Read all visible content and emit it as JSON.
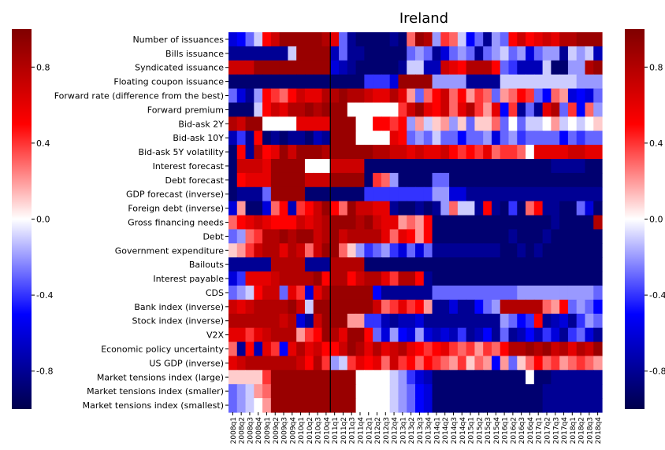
{
  "chart_data": {
    "type": "heatmap",
    "title": "Ireland",
    "rows": [
      "Number of issuances",
      "Bills issuance",
      "Syndicated issuance",
      "Floating coupon issuance",
      "Forward rate (difference from the best)",
      "Forward premium",
      "Bid-ask 2Y",
      "Bid-ask 10Y",
      "Bid-ask 5Y volatility",
      "Interest forecast",
      "Debt forecast",
      "GDP forecast (inverse)",
      "Foreign debt (inverse)",
      "Gross financing needs",
      "Debt",
      "Government expenditure",
      "Bailouts",
      "Interest payable",
      "CDS",
      "Bank index (inverse)",
      "Stock index (inverse)",
      "V2X",
      "Economic policy uncertainty",
      "US GDP (inverse)",
      "Market tensions index (large)",
      "Market tensions index (smaller)",
      "Market tensions index (smallest)"
    ],
    "columns": [
      "2008q1",
      "2008q2",
      "2008q3",
      "2008q4",
      "2009q1",
      "2009q2",
      "2009q3",
      "2009q4",
      "2010q1",
      "2010q2",
      "2010q3",
      "2010q4",
      "2011q1",
      "2011q2",
      "2011q3",
      "2011q4",
      "2012q1",
      "2012q2",
      "2012q3",
      "2012q4",
      "2013q1",
      "2013q2",
      "2013q3",
      "2013q4",
      "2014q1",
      "2014q2",
      "2014q3",
      "2014q4",
      "2015q1",
      "2015q2",
      "2015q3",
      "2015q4",
      "2016q1",
      "2016q2",
      "2016q3",
      "2016q4",
      "2017q1",
      "2017q2",
      "2017q3",
      "2017q4",
      "2018q1",
      "2018q2",
      "2018q3",
      "2018q4"
    ],
    "tick_labels_shown": [
      "2008q1",
      "2008q2",
      "2008q3",
      "2008q4",
      "2009q1",
      "2009q2",
      "2009q3",
      "2009q4",
      "2010q1",
      "2010q2",
      "2010q3",
      "2010q4",
      "2011q1",
      "2011q2",
      "2011q3",
      "2011q4",
      "2012q1",
      "2012q2",
      "2012q3",
      "2012q4",
      "2013q1",
      "2013q2",
      "2013q3",
      "2013q4",
      "2014q1",
      "2014q2",
      "2014q3",
      "2014q4",
      "2015q1",
      "2015q2",
      "2015q3",
      "2015q4",
      "2016q1",
      "2016q2",
      "2016q3",
      "2016q4",
      "2017q1",
      "2017q2",
      "2017q3",
      "2017q4",
      "2018q1",
      "2018q2",
      "2018q3",
      "2018q4"
    ],
    "value_range": [
      -1,
      1
    ],
    "colormap": [
      "#00004c",
      "#0000ff",
      "#ffffff",
      "#ff0000",
      "#7f0000"
    ],
    "colorbar_ticks": [
      0.8,
      0.4,
      0.0,
      -0.4,
      -0.8
    ],
    "colorbar_tick_labels": [
      "0.8",
      "0.4",
      "0.0",
      "-0.4",
      "-0.8"
    ],
    "vertical_marker_at": "2011q1",
    "values": [
      [
        -0.6,
        -0.5,
        -0.3,
        -0.1,
        0.5,
        0.7,
        0.9,
        0.9,
        0.9,
        0.9,
        0.9,
        0.8,
        0.6,
        -0.3,
        -0.8,
        -0.9,
        -0.9,
        -0.9,
        -0.9,
        -0.8,
        -0.9,
        0.3,
        0.9,
        0.8,
        -0.2,
        0.4,
        0.3,
        -0.1,
        -0.5,
        -0.3,
        -0.8,
        -0.2,
        -0.3,
        0.5,
        0.7,
        0.5,
        0.6,
        0.7,
        0.6,
        0.8,
        0.8,
        0.9,
        0.9,
        0.9
      ],
      [
        -0.8,
        -0.8,
        -0.8,
        -0.8,
        -0.8,
        -0.8,
        -0.8,
        -0.1,
        0.9,
        0.9,
        0.9,
        0.9,
        -0.7,
        -0.3,
        -0.8,
        -0.8,
        -0.9,
        -0.9,
        -0.9,
        -0.9,
        -0.9,
        -0.3,
        -0.2,
        -0.3,
        -0.8,
        -0.6,
        -0.3,
        -0.2,
        -0.3,
        -0.8,
        -0.3,
        -0.2,
        -0.1,
        -0.3,
        -0.2,
        -0.6,
        -0.3,
        -0.2,
        -0.2,
        -0.8,
        -0.1,
        -0.2,
        -0.1,
        -0.7
      ],
      [
        0.7,
        0.7,
        0.7,
        0.9,
        0.9,
        0.9,
        0.9,
        0.9,
        0.9,
        0.9,
        0.9,
        0.9,
        -0.6,
        -0.7,
        -0.8,
        -0.9,
        -0.9,
        -0.9,
        -0.9,
        -0.9,
        -0.8,
        -0.1,
        -0.1,
        -0.7,
        -0.7,
        0.7,
        0.6,
        0.5,
        0.8,
        0.8,
        0.8,
        0.5,
        -0.3,
        -0.4,
        -0.7,
        -0.7,
        -0.7,
        -0.1,
        -0.9,
        -0.9,
        -0.2,
        -0.2,
        0.8,
        0.9
      ],
      [
        -0.9,
        -0.9,
        -0.9,
        -0.9,
        -0.9,
        -0.9,
        -0.9,
        -0.9,
        -0.9,
        -0.9,
        -0.9,
        -0.9,
        -0.9,
        -0.9,
        -0.9,
        -0.9,
        -0.4,
        -0.4,
        -0.4,
        -0.6,
        0.9,
        0.9,
        0.9,
        0.9,
        -0.2,
        -0.2,
        -0.2,
        -0.2,
        -0.8,
        -0.8,
        -0.8,
        -0.8,
        -0.1,
        -0.1,
        -0.1,
        -0.1,
        -0.1,
        -0.1,
        -0.1,
        -0.1,
        -0.1,
        -0.2,
        -0.2,
        -0.2
      ],
      [
        -0.3,
        -0.6,
        -0.8,
        -0.2,
        0.5,
        0.4,
        0.3,
        0.5,
        0.7,
        0.6,
        0.6,
        0.8,
        0.8,
        0.9,
        0.8,
        0.8,
        0.7,
        0.6,
        0.6,
        0.8,
        0.6,
        0.2,
        -0.3,
        0.3,
        0.5,
        0.7,
        0.3,
        0.5,
        0.2,
        0.4,
        0.3,
        -0.3,
        0.2,
        0.3,
        0.5,
        0.4,
        -0.3,
        -0.5,
        0.3,
        0.2,
        -0.6,
        -0.5,
        -0.6,
        -0.3
      ],
      [
        -0.9,
        -0.9,
        -0.9,
        -0.1,
        0.5,
        0.7,
        0.6,
        0.8,
        0.8,
        0.9,
        0.8,
        0.9,
        0.9,
        0.9,
        0.0,
        0.0,
        0.0,
        0.0,
        0.0,
        0.0,
        0.4,
        0.7,
        0.9,
        0.6,
        0.5,
        0.7,
        0.3,
        0.6,
        0.8,
        0.4,
        0.2,
        0.6,
        -0.5,
        0.4,
        -0.8,
        -0.3,
        -0.8,
        0.6,
        0.8,
        -0.3,
        0.4,
        -0.5,
        0.3,
        -0.2
      ],
      [
        0.8,
        0.7,
        0.9,
        0.9,
        0.0,
        0.0,
        0.0,
        0.0,
        0.6,
        0.6,
        0.6,
        0.6,
        0.9,
        0.9,
        0.9,
        0.0,
        0.0,
        0.5,
        0.5,
        0.4,
        0.5,
        -0.2,
        0.2,
        -0.1,
        0.1,
        0.2,
        -0.2,
        0.1,
        -0.3,
        0.1,
        0.1,
        0.3,
        -0.3,
        0.0,
        -0.3,
        -0.1,
        -0.1,
        0.0,
        0.2,
        -0.1,
        0.0,
        -0.1,
        0.0,
        0.1
      ],
      [
        -0.7,
        -0.4,
        -0.8,
        0.5,
        -0.9,
        -0.8,
        -0.9,
        -0.8,
        -0.8,
        -0.9,
        -0.7,
        -0.8,
        0.9,
        0.9,
        0.9,
        0.0,
        0.0,
        0.0,
        0.0,
        0.6,
        0.5,
        -0.3,
        -0.2,
        -0.3,
        -0.1,
        -0.3,
        -0.3,
        -0.5,
        -0.3,
        -0.3,
        -0.2,
        -0.6,
        -0.3,
        -0.2,
        -0.4,
        -0.3,
        -0.3,
        -0.3,
        -0.3,
        -0.5,
        -0.3,
        -0.4,
        -0.3,
        -0.3
      ],
      [
        -0.9,
        0.5,
        -0.8,
        0.8,
        0.5,
        0.6,
        0.9,
        0.7,
        0.9,
        0.9,
        0.9,
        0.8,
        0.9,
        0.9,
        0.9,
        0.9,
        0.9,
        0.8,
        0.8,
        0.7,
        0.7,
        0.6,
        0.7,
        0.6,
        0.6,
        0.7,
        0.5,
        0.4,
        0.5,
        0.4,
        0.6,
        0.3,
        0.4,
        0.4,
        0.3,
        0.0,
        0.6,
        0.6,
        0.6,
        0.6,
        0.7,
        0.7,
        0.6,
        0.6
      ],
      [
        -0.9,
        0.7,
        0.7,
        0.7,
        0.6,
        0.9,
        0.9,
        0.9,
        0.9,
        0.0,
        0.0,
        0.0,
        0.7,
        0.7,
        0.7,
        0.7,
        -0.9,
        -0.9,
        -0.9,
        -0.9,
        -0.9,
        -0.9,
        -0.9,
        -0.9,
        -0.9,
        -0.9,
        -0.9,
        -0.9,
        -0.9,
        -0.9,
        -0.9,
        -0.9,
        -0.9,
        -0.9,
        -0.9,
        -0.9,
        -0.9,
        -0.9,
        -0.8,
        -0.8,
        -0.8,
        -0.8,
        -0.9,
        -0.9
      ],
      [
        -0.9,
        0.5,
        0.6,
        0.6,
        0.6,
        0.9,
        0.9,
        0.9,
        0.9,
        0.7,
        0.7,
        0.7,
        0.9,
        0.9,
        0.9,
        0.9,
        -0.9,
        0.4,
        0.3,
        -0.2,
        -0.9,
        -0.9,
        -0.9,
        -0.9,
        -0.3,
        -0.3,
        -0.9,
        -0.9,
        -0.9,
        -0.9,
        -0.9,
        -0.9,
        -0.9,
        -0.9,
        -0.9,
        -0.9,
        -0.9,
        -0.9,
        -0.9,
        -0.9,
        -0.9,
        -0.9,
        -0.9,
        -0.9
      ],
      [
        -0.9,
        -0.8,
        -0.8,
        -0.8,
        -0.3,
        0.9,
        0.9,
        0.9,
        0.9,
        -0.9,
        -0.9,
        -0.9,
        -0.9,
        -0.9,
        -0.9,
        -0.9,
        -0.4,
        -0.4,
        -0.4,
        -0.4,
        -0.4,
        -0.4,
        -0.4,
        -0.4,
        -0.2,
        -0.2,
        -0.6,
        -0.6,
        -0.8,
        -0.8,
        -0.8,
        -0.8,
        -0.8,
        -0.8,
        -0.8,
        -0.8,
        -0.8,
        -0.8,
        -0.8,
        -0.8,
        -0.8,
        -0.8,
        -0.8,
        -0.8
      ],
      [
        -0.6,
        0.2,
        -0.9,
        -0.9,
        -0.6,
        0.3,
        0.5,
        -0.7,
        0.4,
        0.5,
        0.7,
        0.9,
        0.5,
        0.3,
        0.9,
        0.7,
        0.7,
        0.6,
        0.6,
        -0.8,
        -0.9,
        -0.9,
        -0.8,
        -0.9,
        -0.8,
        -0.2,
        0.3,
        -0.1,
        -0.1,
        -0.8,
        0.5,
        -0.8,
        -0.9,
        -0.4,
        -0.9,
        0.3,
        0.5,
        -0.8,
        -0.8,
        -0.9,
        -0.9,
        -0.3,
        -0.6,
        -0.9
      ],
      [
        0.3,
        0.5,
        0.6,
        0.7,
        0.6,
        0.5,
        0.5,
        0.5,
        0.7,
        0.6,
        0.7,
        0.8,
        0.9,
        0.9,
        0.9,
        0.8,
        0.9,
        0.7,
        0.6,
        0.6,
        0.2,
        0.3,
        0.2,
        0.5,
        -0.9,
        -0.9,
        -0.9,
        -0.9,
        -0.9,
        -0.9,
        -0.9,
        -0.9,
        -0.9,
        -0.9,
        -0.9,
        -0.9,
        -0.9,
        -0.9,
        -0.8,
        -0.9,
        -0.9,
        -0.9,
        -0.9,
        0.8
      ],
      [
        -0.3,
        -0.2,
        0.3,
        0.4,
        0.8,
        0.8,
        0.9,
        0.8,
        0.9,
        0.9,
        0.7,
        0.8,
        0.9,
        0.7,
        0.8,
        0.8,
        0.8,
        0.8,
        0.6,
        0.3,
        0.6,
        0.5,
        0.2,
        0.5,
        -0.9,
        -0.9,
        -0.9,
        -0.9,
        -0.9,
        -0.9,
        -0.9,
        -0.9,
        -0.9,
        -0.8,
        -0.9,
        -0.9,
        -0.9,
        -0.8,
        -0.9,
        -0.9,
        -0.9,
        -0.9,
        -0.9,
        -0.9
      ],
      [
        0.1,
        0.2,
        0.4,
        0.7,
        0.8,
        0.8,
        0.6,
        0.8,
        0.7,
        0.3,
        0.7,
        0.9,
        0.9,
        0.3,
        0.1,
        -0.2,
        -0.4,
        -0.3,
        -0.2,
        -0.4,
        -0.6,
        -0.3,
        -0.6,
        -0.3,
        -0.8,
        -0.8,
        -0.8,
        -0.8,
        -0.8,
        -0.8,
        -0.8,
        -0.8,
        -0.9,
        -0.9,
        -0.8,
        -0.9,
        -0.8,
        -0.9,
        -0.9,
        -0.9,
        -0.9,
        -0.9,
        -0.9,
        -0.9
      ],
      [
        -0.8,
        -0.8,
        -0.8,
        -0.8,
        -0.8,
        0.8,
        0.8,
        0.8,
        0.8,
        -0.8,
        -0.8,
        -0.8,
        0.8,
        0.8,
        0.8,
        0.8,
        -0.9,
        -0.9,
        -0.9,
        -0.9,
        -0.9,
        -0.9,
        -0.9,
        -0.9,
        -0.9,
        -0.9,
        -0.9,
        -0.9,
        -0.9,
        -0.9,
        -0.9,
        -0.9,
        -0.9,
        -0.9,
        -0.9,
        -0.9,
        -0.9,
        -0.9,
        -0.9,
        -0.9,
        -0.9,
        -0.9,
        -0.9,
        -0.9
      ],
      [
        -0.6,
        -0.4,
        0.6,
        0.6,
        0.6,
        0.7,
        0.8,
        0.8,
        0.8,
        0.8,
        0.9,
        0.5,
        0.8,
        0.8,
        0.5,
        0.7,
        0.8,
        0.8,
        0.6,
        0.4,
        0.8,
        0.8,
        0.5,
        -0.8,
        -0.9,
        -0.9,
        -0.9,
        -0.9,
        -0.9,
        -0.9,
        -0.9,
        -0.9,
        -0.9,
        -0.9,
        -0.9,
        -0.9,
        -0.9,
        -0.9,
        -0.9,
        -0.9,
        -0.9,
        -0.9,
        -0.9,
        -0.9
      ],
      [
        -0.3,
        -0.2,
        -0.1,
        0.5,
        0.7,
        0.7,
        -0.3,
        0.6,
        0.4,
        -0.6,
        0.6,
        0.8,
        0.9,
        0.9,
        0.9,
        0.9,
        0.9,
        -0.5,
        -0.8,
        -0.8,
        -0.8,
        -0.8,
        -0.8,
        -0.8,
        -0.3,
        -0.3,
        -0.3,
        -0.3,
        -0.3,
        -0.3,
        -0.3,
        -0.3,
        -0.3,
        -0.3,
        -0.2,
        -0.2,
        -0.2,
        -0.2,
        -0.2,
        -0.2,
        -0.2,
        -0.2,
        -0.2,
        -0.3
      ],
      [
        0.7,
        0.6,
        0.7,
        0.8,
        0.8,
        0.8,
        0.8,
        0.9,
        0.7,
        -0.1,
        0.9,
        0.9,
        0.9,
        0.9,
        0.9,
        0.9,
        0.9,
        0.7,
        0.3,
        0.4,
        0.6,
        0.4,
        0.5,
        0.2,
        -0.8,
        -0.8,
        -0.6,
        -0.8,
        -0.8,
        -0.5,
        -0.3,
        -0.2,
        0.8,
        0.8,
        0.8,
        0.8,
        0.8,
        0.3,
        0.2,
        0.5,
        -0.3,
        -0.2,
        -0.3,
        -0.5
      ],
      [
        0.8,
        0.8,
        0.8,
        0.8,
        0.8,
        0.8,
        0.7,
        0.8,
        -0.6,
        -0.8,
        0.7,
        0.9,
        0.9,
        0.9,
        0.2,
        0.2,
        -0.4,
        -0.4,
        -0.7,
        -0.8,
        -0.7,
        -0.7,
        -0.6,
        -0.8,
        -0.8,
        -0.8,
        -0.8,
        -0.8,
        -0.8,
        -0.8,
        -0.8,
        -0.8,
        -0.2,
        -0.3,
        -0.5,
        -0.4,
        0.5,
        -0.8,
        -0.7,
        -0.6,
        -0.8,
        -0.4,
        -0.2,
        -0.3
      ],
      [
        0.6,
        0.6,
        0.4,
        0.6,
        0.7,
        0.8,
        0.8,
        0.8,
        0.2,
        0.4,
        0.5,
        0.9,
        0.8,
        0.6,
        0.9,
        0.9,
        0.5,
        -0.3,
        -0.6,
        -0.2,
        -0.5,
        -0.6,
        -0.2,
        -0.6,
        -0.7,
        -0.6,
        -0.7,
        -0.4,
        -0.8,
        -0.7,
        -0.5,
        -0.8,
        -0.3,
        -0.8,
        -0.7,
        -0.5,
        -0.7,
        -0.4,
        -0.6,
        -0.8,
        -0.4,
        -0.3,
        -0.6,
        -0.8
      ],
      [
        0.3,
        -0.8,
        0.5,
        -0.7,
        0.6,
        0.4,
        -0.5,
        0.6,
        0.8,
        0.6,
        0.7,
        0.5,
        0.5,
        0.7,
        0.9,
        0.8,
        0.6,
        0.8,
        0.6,
        0.7,
        0.8,
        0.6,
        0.5,
        0.4,
        0.5,
        0.6,
        0.4,
        0.3,
        0.4,
        0.2,
        0.4,
        0.3,
        0.5,
        0.8,
        0.8,
        0.9,
        0.8,
        0.9,
        0.7,
        0.8,
        0.6,
        0.8,
        0.7,
        0.9
      ],
      [
        0.6,
        0.7,
        0.8,
        0.8,
        0.8,
        0.8,
        0.8,
        0.8,
        0.7,
        0.5,
        0.8,
        0.4,
        -0.2,
        -0.1,
        0.4,
        0.6,
        0.5,
        0.6,
        0.3,
        0.7,
        0.4,
        0.5,
        0.3,
        0.5,
        0.4,
        0.3,
        0.2,
        0.4,
        0.1,
        0.3,
        0.2,
        -0.5,
        0.2,
        -0.3,
        0.1,
        0.3,
        0.5,
        0.3,
        0.4,
        0.2,
        0.3,
        0.4,
        0.3,
        0.2
      ],
      [
        0.1,
        0.1,
        0.1,
        0.1,
        0.4,
        0.9,
        0.9,
        0.9,
        0.9,
        0.9,
        0.9,
        0.9,
        0.9,
        0.9,
        0.9,
        0.0,
        0.0,
        0.0,
        0.0,
        -0.1,
        -0.2,
        -0.4,
        -0.6,
        -0.7,
        -0.9,
        -0.9,
        -0.9,
        -0.9,
        -0.9,
        -0.9,
        -0.9,
        -0.9,
        -0.9,
        -0.9,
        -0.9,
        0.0,
        -0.9,
        -0.9,
        -0.8,
        -0.8,
        -0.8,
        -0.8,
        -0.8,
        -0.8
      ],
      [
        -0.3,
        -0.2,
        -0.1,
        0.2,
        0.3,
        0.9,
        0.9,
        0.9,
        0.9,
        0.9,
        0.9,
        0.9,
        0.9,
        0.9,
        0.9,
        0.0,
        0.0,
        0.0,
        0.0,
        -0.1,
        -0.2,
        -0.3,
        -0.5,
        -0.6,
        -0.9,
        -0.9,
        -0.9,
        -0.9,
        -0.9,
        -0.9,
        -0.9,
        -0.9,
        -0.9,
        -0.9,
        -0.9,
        -0.9,
        -0.9,
        -0.8,
        -0.8,
        -0.8,
        -0.8,
        -0.8,
        -0.8,
        -0.8
      ],
      [
        -0.3,
        -0.2,
        -0.1,
        0.0,
        0.2,
        0.9,
        0.9,
        0.9,
        0.9,
        0.9,
        0.9,
        0.9,
        0.9,
        0.9,
        0.9,
        0.0,
        0.0,
        0.0,
        0.0,
        -0.1,
        -0.2,
        -0.3,
        -0.5,
        -0.6,
        -0.9,
        -0.9,
        -0.9,
        -0.9,
        -0.9,
        -0.9,
        -0.9,
        -0.9,
        -0.9,
        -0.9,
        -0.9,
        -0.9,
        -0.9,
        -0.8,
        -0.8,
        -0.8,
        -0.8,
        -0.8,
        -0.8,
        -0.8
      ]
    ]
  }
}
